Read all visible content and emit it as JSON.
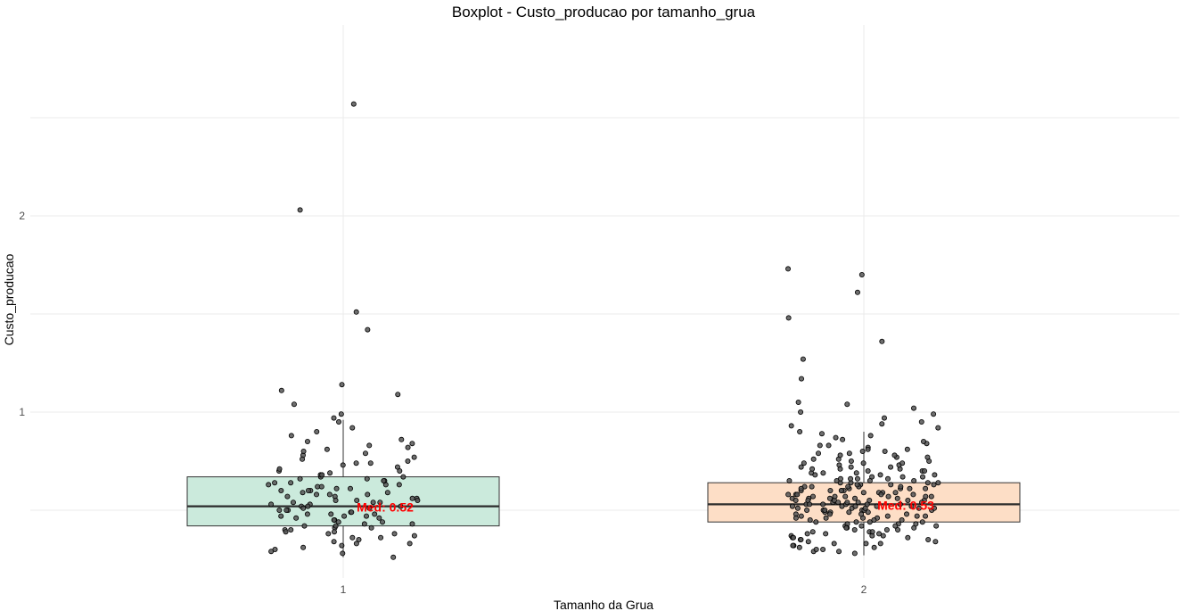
{
  "chart_data": {
    "type": "boxplot",
    "title": "Boxplot - Custo_producao por tamanho_grua",
    "xlabel": "Tamanho da Grua",
    "ylabel": "Custo_producao",
    "categories": [
      "1",
      "2"
    ],
    "y_ticks": [
      "1",
      "2"
    ],
    "ylim": [
      0.25,
      2.7
    ],
    "grid": true,
    "colors": {
      "1": "#cbeadc",
      "2": "#fddec6"
    },
    "boxes": [
      {
        "category": "1",
        "q1": 0.42,
        "median": 0.52,
        "q3": 0.67,
        "whisker_low": 0.26,
        "whisker_high": 0.96,
        "median_label": "Med: 0.52"
      },
      {
        "category": "2",
        "q1": 0.44,
        "median": 0.53,
        "q3": 0.64,
        "whisker_low": 0.27,
        "whisker_high": 0.9,
        "median_label": "Med: 0.53"
      }
    ],
    "outliers": [
      {
        "category": "1",
        "values": [
          2.57,
          2.03,
          1.51,
          1.42,
          1.14,
          1.11
        ]
      },
      {
        "category": "2",
        "values": [
          1.73,
          1.7,
          1.61,
          1.48,
          1.36,
          1.27,
          1.17
        ]
      }
    ],
    "points": [
      {
        "category": "1",
        "values": [
          0.32,
          0.36,
          0.4,
          0.42,
          0.45,
          0.47,
          0.5,
          0.52,
          0.55,
          0.58,
          0.6,
          0.63,
          0.66,
          0.7,
          0.73,
          0.78,
          0.83,
          0.88,
          0.92,
          0.99,
          1.04,
          0.3,
          0.33,
          0.37,
          0.39,
          0.41,
          0.43,
          0.46,
          0.48,
          0.49,
          0.51,
          0.53,
          0.54,
          0.56,
          0.57,
          0.59,
          0.61,
          0.62,
          0.64,
          0.65,
          0.67,
          0.68,
          0.71,
          0.75,
          0.8,
          0.86,
          0.95,
          0.31,
          0.35,
          0.38,
          0.44,
          0.47,
          0.5,
          0.52,
          0.55,
          0.6,
          0.64,
          0.69,
          0.74,
          0.79,
          0.84,
          0.9,
          0.97,
          0.28,
          0.34,
          0.38,
          0.42,
          0.45,
          0.48,
          0.51,
          0.54,
          0.57,
          0.6,
          0.65,
          0.72,
          0.77,
          0.82,
          1.09,
          0.36,
          0.43,
          0.49,
          0.53,
          0.58,
          0.62,
          0.66,
          0.81,
          0.41,
          0.46,
          0.52,
          0.56,
          0.63,
          0.68,
          0.74,
          0.39,
          0.47,
          0.55,
          0.61,
          0.7,
          0.33,
          0.44,
          0.5,
          0.59,
          0.67,
          0.85,
          0.29,
          0.4,
          0.48,
          0.54,
          0.58,
          0.63,
          0.76,
          0.26
        ]
      },
      {
        "category": "2",
        "values": [
          0.29,
          0.32,
          0.35,
          0.37,
          0.39,
          0.41,
          0.43,
          0.45,
          0.46,
          0.48,
          0.49,
          0.5,
          0.51,
          0.52,
          0.53,
          0.54,
          0.55,
          0.56,
          0.57,
          0.58,
          0.59,
          0.6,
          0.61,
          0.62,
          0.63,
          0.64,
          0.65,
          0.67,
          0.69,
          0.71,
          0.73,
          0.75,
          0.77,
          0.8,
          0.83,
          0.86,
          0.9,
          0.95,
          1.0,
          1.05,
          0.3,
          0.33,
          0.36,
          0.38,
          0.4,
          0.42,
          0.44,
          0.47,
          0.49,
          0.51,
          0.53,
          0.55,
          0.57,
          0.59,
          0.61,
          0.63,
          0.66,
          0.68,
          0.7,
          0.72,
          0.74,
          0.78,
          0.81,
          0.84,
          0.88,
          0.92,
          0.97,
          1.02,
          0.28,
          0.31,
          0.34,
          0.37,
          0.4,
          0.43,
          0.45,
          0.48,
          0.5,
          0.52,
          0.54,
          0.56,
          0.58,
          0.6,
          0.62,
          0.64,
          0.66,
          0.69,
          0.72,
          0.76,
          0.79,
          0.82,
          0.87,
          0.93,
          0.99,
          0.33,
          0.36,
          0.41,
          0.44,
          0.47,
          0.5,
          0.53,
          0.55,
          0.57,
          0.59,
          0.62,
          0.65,
          0.68,
          0.71,
          0.75,
          0.85,
          0.31,
          0.35,
          0.39,
          0.42,
          0.46,
          0.49,
          0.51,
          0.54,
          0.56,
          0.58,
          0.61,
          0.63,
          0.67,
          0.7,
          0.74,
          0.79,
          0.89,
          1.04,
          0.32,
          0.38,
          0.43,
          0.47,
          0.52,
          0.55,
          0.6,
          0.64,
          0.69,
          0.73,
          0.8,
          0.3,
          0.37,
          0.44,
          0.5,
          0.53,
          0.57,
          0.61,
          0.66,
          0.72,
          0.83,
          0.34,
          0.4,
          0.46,
          0.51,
          0.56,
          0.6,
          0.65,
          0.71,
          0.77,
          0.94,
          0.36,
          0.42,
          0.48,
          0.52,
          0.55,
          0.59,
          0.63,
          0.68,
          0.76,
          0.29,
          0.39,
          0.45,
          0.5,
          0.54,
          0.58,
          0.62,
          0.7,
          0.81,
          0.33,
          0.41,
          0.47,
          0.53,
          0.57,
          0.64,
          0.74,
          0.35,
          0.44,
          0.51,
          0.56,
          0.61,
          0.67,
          0.78,
          0.38,
          0.49,
          0.55,
          0.6,
          0.66,
          0.42,
          0.52,
          0.58,
          0.65,
          0.46,
          0.54,
          0.62,
          0.48,
          0.57,
          0.5,
          0.53
        ]
      }
    ]
  }
}
